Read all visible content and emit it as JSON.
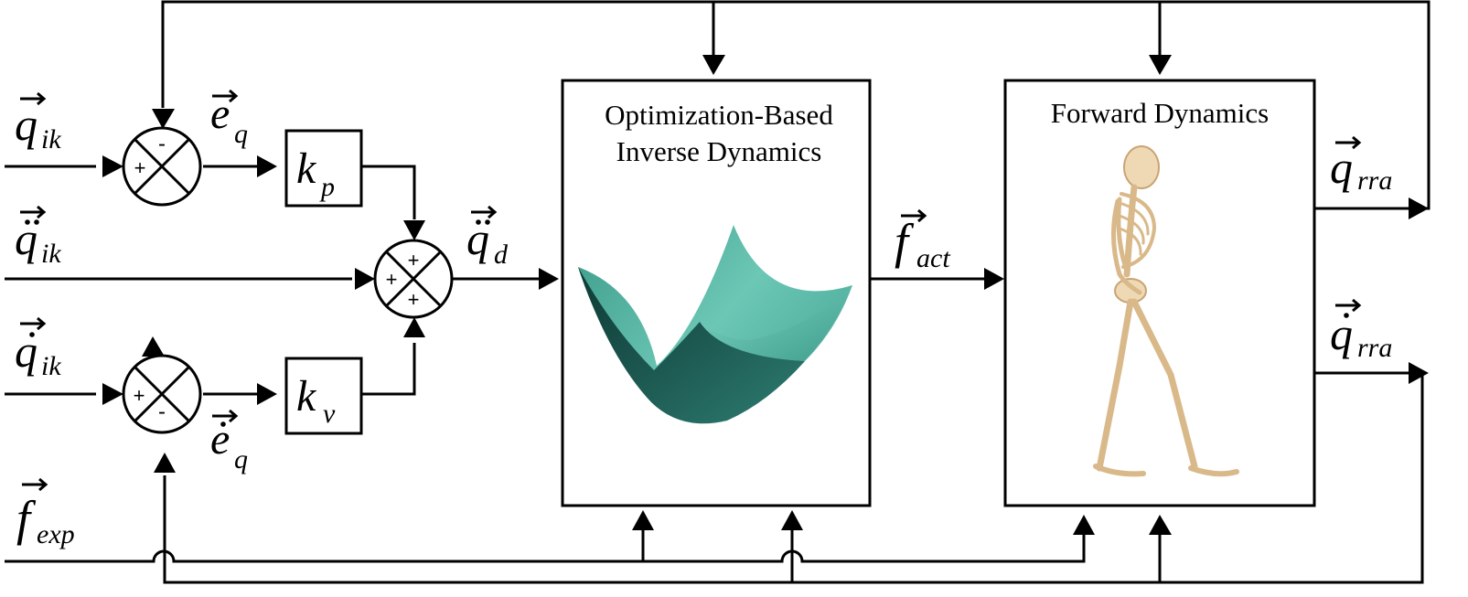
{
  "blocks": {
    "inverse_dynamics": {
      "line1": "Optimization-Based",
      "line2": "Inverse Dynamics"
    },
    "forward_dynamics": {
      "title": "Forward Dynamics"
    },
    "kp": {
      "base": "k",
      "sub": "p"
    },
    "kv": {
      "base": "k",
      "sub": "v"
    }
  },
  "signals": {
    "q_ik": {
      "base": "q",
      "sub": "ik"
    },
    "qdd_ik": {
      "base": "q",
      "sub": "ik"
    },
    "qd_ik": {
      "base": "q",
      "sub": "ik"
    },
    "f_exp": {
      "base": "f",
      "sub": "exp"
    },
    "e_q": {
      "base": "e",
      "sub": "q"
    },
    "ed_q": {
      "base": "e",
      "sub": "q"
    },
    "qdd_d": {
      "base": "q",
      "sub": "d"
    },
    "f_act": {
      "base": "f",
      "sub": "act"
    },
    "q_rra": {
      "base": "q",
      "sub": "rra"
    },
    "qd_rra": {
      "base": "q",
      "sub": "rra"
    }
  },
  "summing_junctions": {
    "sj1": {
      "top": "-",
      "left": "+"
    },
    "sj2": {
      "top": "+",
      "left": "+",
      "bottom": "+"
    },
    "sj3": {
      "left": "+",
      "bottom": "-"
    }
  },
  "icons": {
    "surface": "optimization-surface-icon",
    "skeleton": "walking-skeleton-icon"
  }
}
